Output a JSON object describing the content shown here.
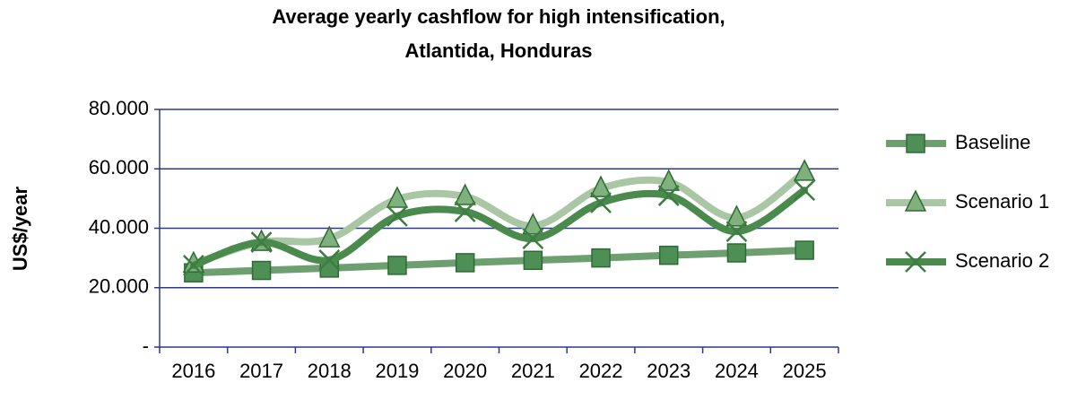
{
  "chart_data": {
    "type": "line",
    "title": [
      "Average yearly cashflow for high intensification,",
      "Atlantida, Honduras"
    ],
    "ylabel": "US$/year",
    "categories": [
      "2016",
      "2017",
      "2018",
      "2019",
      "2020",
      "2021",
      "2022",
      "2023",
      "2024",
      "2025"
    ],
    "series": [
      {
        "name": "Baseline",
        "color": "#6e9f70",
        "marker": "square",
        "marker_color": "#4e8f56",
        "values": [
          25000,
          25800,
          26600,
          27500,
          28400,
          29200,
          30000,
          30900,
          31700,
          32600
        ]
      },
      {
        "name": "Scenario 1",
        "color": "#a9c7a4",
        "marker": "triangle",
        "marker_color": "#7fb07e",
        "values": [
          28000,
          35300,
          36500,
          49800,
          50700,
          40800,
          53400,
          55500,
          43500,
          58900
        ]
      },
      {
        "name": "Scenario 2",
        "color": "#4a8a4c",
        "marker": "x",
        "marker_color": "#3d7d41",
        "values": [
          27500,
          35300,
          29300,
          44100,
          45600,
          36500,
          48600,
          51000,
          38900,
          52800
        ]
      }
    ],
    "smooth": true,
    "ylim": [
      0,
      80000
    ],
    "yticks": [
      {
        "value": 0,
        "label": "-"
      },
      {
        "value": 20000,
        "label": "20.000"
      },
      {
        "value": 40000,
        "label": "40.000"
      },
      {
        "value": 60000,
        "label": "60.000"
      },
      {
        "value": 80000,
        "label": "80.000"
      }
    ],
    "grid": true,
    "legend": "right"
  }
}
